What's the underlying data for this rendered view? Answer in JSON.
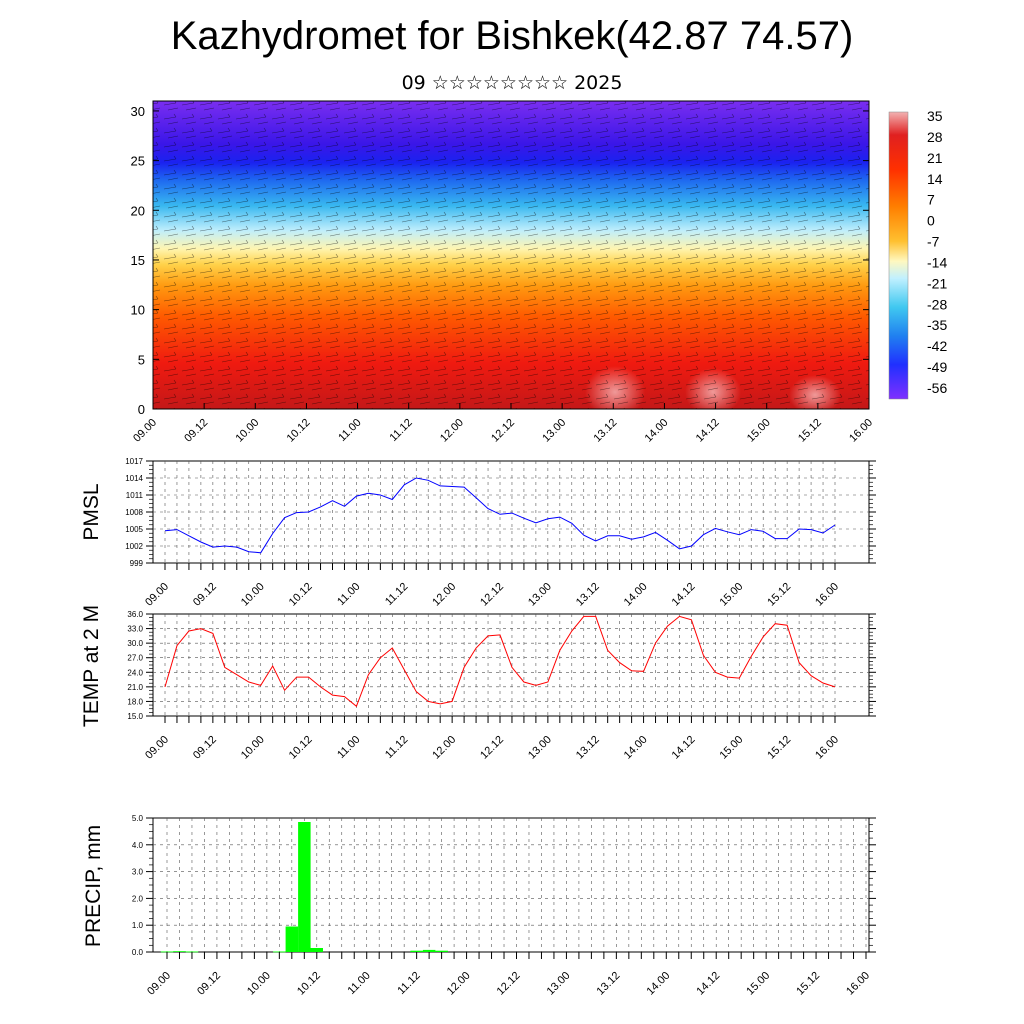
{
  "header": {
    "title": "Kazhydromet for Bishkek(42.87 74.57)",
    "subtitle": "09 ☆☆☆☆☆☆☆☆ 2025"
  },
  "time_labels": [
    "09.00",
    "09.12",
    "10.00",
    "10.12",
    "11.00",
    "11.12",
    "12.00",
    "12.12",
    "13.00",
    "13.12",
    "14.00",
    "14.12",
    "15.00",
    "15.12",
    "16.00"
  ],
  "chart_data": [
    {
      "type": "heatmap",
      "name": "cross_section",
      "title": "",
      "xlabel": "",
      "ylabel": "",
      "x_ticks": [
        "09.00",
        "09.12",
        "10.00",
        "10.12",
        "11.00",
        "11.12",
        "12.00",
        "12.12",
        "13.00",
        "13.12",
        "14.00",
        "14.12",
        "15.00",
        "15.12",
        "16.00"
      ],
      "ylim": [
        0,
        31
      ],
      "y_ticks": [
        0,
        5,
        10,
        15,
        20,
        25,
        30
      ],
      "colorbar_labels": [
        "35",
        "28",
        "21",
        "14",
        "7",
        "0",
        "-7",
        "-14",
        "-21",
        "-28",
        "-35",
        "-42",
        "-49",
        "-56"
      ],
      "colors": [
        "#f2b2b2",
        "#e02020",
        "#ff4000",
        "#ff7f00",
        "#ffb000",
        "#ffe060",
        "#fff8c0",
        "#c0f0ff",
        "#40c8f0",
        "#2080f0",
        "#2040ff",
        "#3010e0",
        "#7f30ff"
      ],
      "description_levels_km": [
        0,
        31
      ]
    },
    {
      "type": "line",
      "name": "PMSL",
      "ylabel": "PMSL",
      "ylim": [
        999,
        1017
      ],
      "y_ticks": [
        "999",
        "1002",
        "1005",
        "1008",
        "1011",
        "1014",
        "1017"
      ],
      "color": "#0000ff",
      "x": [
        0,
        3,
        6,
        9,
        12,
        15,
        18,
        21,
        24,
        27,
        30,
        33,
        36,
        39,
        42,
        45,
        48,
        51,
        54,
        57,
        60,
        63,
        66,
        69,
        72,
        75,
        78,
        81,
        84,
        87,
        90,
        93,
        96,
        99,
        102,
        105,
        108,
        111,
        114,
        117,
        120,
        123,
        126,
        129,
        132,
        135,
        138,
        141,
        144,
        147,
        150,
        153,
        156,
        159,
        162,
        165,
        168
      ],
      "values": [
        1004.7,
        1004.9,
        1003.8,
        1002.7,
        1001.8,
        1002.0,
        1001.8,
        1001.0,
        1000.8,
        1004.2,
        1007.0,
        1007.9,
        1008.0,
        1008.9,
        1010.0,
        1009.0,
        1010.8,
        1011.3,
        1011.0,
        1010.2,
        1012.8,
        1014.0,
        1013.6,
        1012.6,
        1012.5,
        1012.4,
        1010.5,
        1008.6,
        1007.6,
        1007.8,
        1006.9,
        1006.1,
        1006.8,
        1007.1,
        1006.0,
        1003.9,
        1002.9,
        1003.8,
        1003.8,
        1003.2,
        1003.6,
        1004.4,
        1003.0,
        1001.5,
        1002.0,
        1004.0,
        1005.1,
        1004.5,
        1004.0,
        1004.9,
        1004.6,
        1003.3,
        1003.3,
        1005.0,
        1004.9,
        1004.3,
        1005.7
      ]
    },
    {
      "type": "line",
      "name": "TEMP at 2 M",
      "ylabel": "TEMP at 2 M",
      "ylim": [
        15,
        36
      ],
      "y_ticks": [
        "15.0",
        "18.0",
        "21.0",
        "24.0",
        "27.0",
        "30.0",
        "33.0",
        "36.0"
      ],
      "color": "#ff0000",
      "x": [
        0,
        3,
        6,
        9,
        12,
        15,
        18,
        21,
        24,
        27,
        30,
        33,
        36,
        39,
        42,
        45,
        48,
        51,
        54,
        57,
        60,
        63,
        66,
        69,
        72,
        75,
        78,
        81,
        84,
        87,
        90,
        93,
        96,
        99,
        102,
        105,
        108,
        111,
        114,
        117,
        120,
        123,
        126,
        129,
        132,
        135,
        138,
        141,
        144,
        147,
        150,
        153,
        156,
        159,
        162,
        165,
        168
      ],
      "values": [
        21.0,
        29.5,
        32.5,
        33.0,
        32.0,
        25.0,
        23.5,
        22.0,
        21.3,
        25.3,
        20.3,
        23.0,
        23.0,
        21.0,
        19.3,
        19.0,
        17.0,
        23.5,
        27.0,
        29.0,
        24.5,
        20.0,
        18.0,
        17.5,
        18.0,
        25.0,
        29.0,
        31.5,
        31.7,
        25.0,
        22.0,
        21.3,
        22.0,
        28.5,
        32.5,
        35.5,
        35.5,
        28.5,
        26.0,
        24.3,
        24.2,
        30.0,
        33.5,
        35.5,
        34.8,
        27.5,
        24.0,
        23.0,
        22.8,
        27.3,
        31.3,
        34.0,
        33.7,
        26.0,
        23.3,
        21.8,
        21.0
      ]
    },
    {
      "type": "bar",
      "name": "PRECIP, mm",
      "ylabel": "PRECIP, mm",
      "ylim": [
        0,
        5
      ],
      "y_ticks": [
        "0.0",
        "1.0",
        "2.0",
        "3.0",
        "4.0",
        "5.0"
      ],
      "color": "#00ff00",
      "x": [
        0,
        3,
        6,
        27,
        30,
        33,
        36,
        60,
        63,
        66
      ],
      "values": [
        0.02,
        0.03,
        0.02,
        0.02,
        0.95,
        4.85,
        0.15,
        0.05,
        0.08,
        0.05
      ]
    }
  ]
}
